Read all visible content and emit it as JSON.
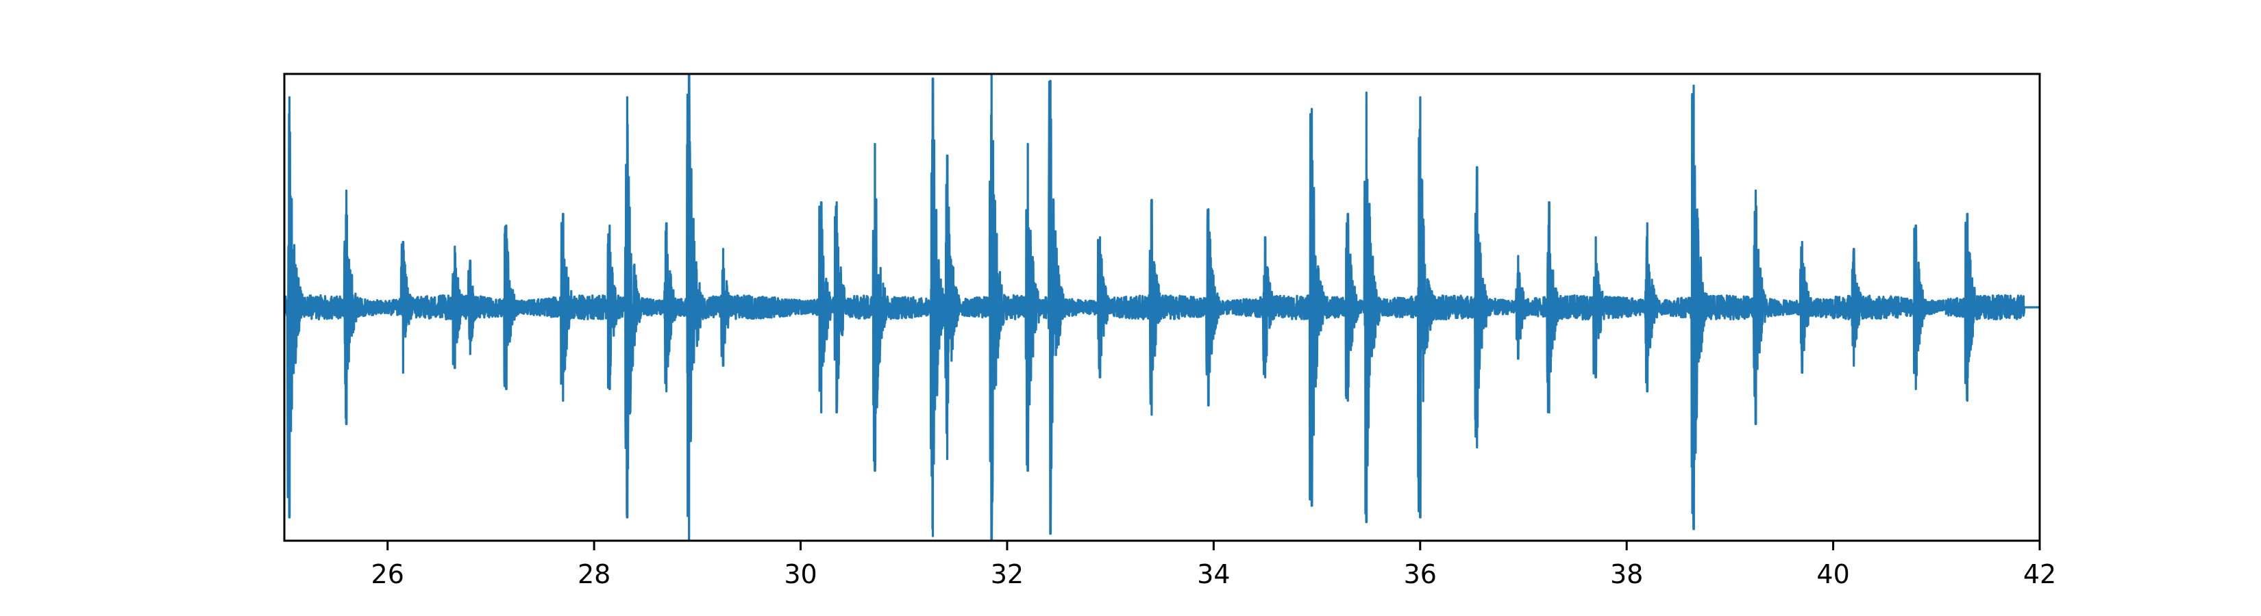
{
  "chart_data": {
    "type": "line",
    "title": "",
    "xlabel": "",
    "ylabel": "",
    "xlim": [
      25,
      42
    ],
    "ylim": [
      -1,
      1
    ],
    "x_ticks": [
      26,
      28,
      30,
      32,
      34,
      36,
      38,
      40,
      42
    ],
    "x_tick_labels": [
      "26",
      "28",
      "30",
      "32",
      "34",
      "36",
      "38",
      "40",
      "42"
    ],
    "y_ticks_visible": false,
    "grid": false,
    "legend": "none",
    "series": [
      {
        "color": "#1f77b4",
        "flat_after": 41.85,
        "base_noise": 0.04,
        "bursts": [
          {
            "t": 25.05,
            "amp": 0.9
          },
          {
            "t": 25.6,
            "amp": 0.5
          },
          {
            "t": 26.15,
            "amp": 0.28
          },
          {
            "t": 26.65,
            "amp": 0.26
          },
          {
            "t": 26.8,
            "amp": 0.2
          },
          {
            "t": 27.15,
            "amp": 0.35
          },
          {
            "t": 27.7,
            "amp": 0.4
          },
          {
            "t": 28.15,
            "amp": 0.35
          },
          {
            "t": 28.32,
            "amp": 0.9
          },
          {
            "t": 28.7,
            "amp": 0.36
          },
          {
            "t": 28.92,
            "amp": 1.0
          },
          {
            "t": 29.25,
            "amp": 0.25
          },
          {
            "t": 30.2,
            "amp": 0.45
          },
          {
            "t": 30.35,
            "amp": 0.45
          },
          {
            "t": 30.72,
            "amp": 0.7
          },
          {
            "t": 31.28,
            "amp": 0.98
          },
          {
            "t": 31.42,
            "amp": 0.65
          },
          {
            "t": 31.85,
            "amp": 1.0
          },
          {
            "t": 32.2,
            "amp": 0.7
          },
          {
            "t": 32.42,
            "amp": 0.97
          },
          {
            "t": 32.9,
            "amp": 0.3
          },
          {
            "t": 33.4,
            "amp": 0.46
          },
          {
            "t": 33.95,
            "amp": 0.42
          },
          {
            "t": 34.5,
            "amp": 0.3
          },
          {
            "t": 34.95,
            "amp": 0.85
          },
          {
            "t": 35.3,
            "amp": 0.4
          },
          {
            "t": 35.48,
            "amp": 0.92
          },
          {
            "t": 36.0,
            "amp": 0.9
          },
          {
            "t": 36.55,
            "amp": 0.6
          },
          {
            "t": 36.95,
            "amp": 0.22
          },
          {
            "t": 37.25,
            "amp": 0.45
          },
          {
            "t": 37.7,
            "amp": 0.3
          },
          {
            "t": 38.2,
            "amp": 0.36
          },
          {
            "t": 38.65,
            "amp": 0.95
          },
          {
            "t": 39.25,
            "amp": 0.5
          },
          {
            "t": 39.7,
            "amp": 0.28
          },
          {
            "t": 40.2,
            "amp": 0.25
          },
          {
            "t": 40.8,
            "amp": 0.35
          },
          {
            "t": 41.3,
            "amp": 0.4
          }
        ]
      }
    ]
  }
}
